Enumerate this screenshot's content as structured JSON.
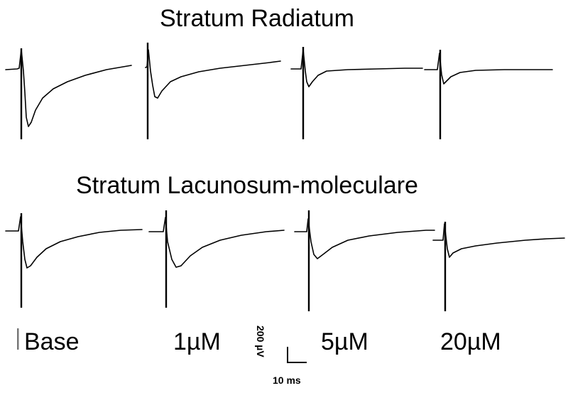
{
  "panels": [
    {
      "id": "radiatum",
      "title": "Stratum Radiatum"
    },
    {
      "id": "lacunosum",
      "title": "Stratum Lacunosum-moleculare"
    }
  ],
  "conditions": [
    "Base",
    "1µM",
    "5µM",
    "20µM"
  ],
  "scale_bar": {
    "voltage_label": "200 µV",
    "time_label": "10 ms"
  },
  "colors": {
    "trace": "#000000",
    "background": "#ffffff"
  }
}
